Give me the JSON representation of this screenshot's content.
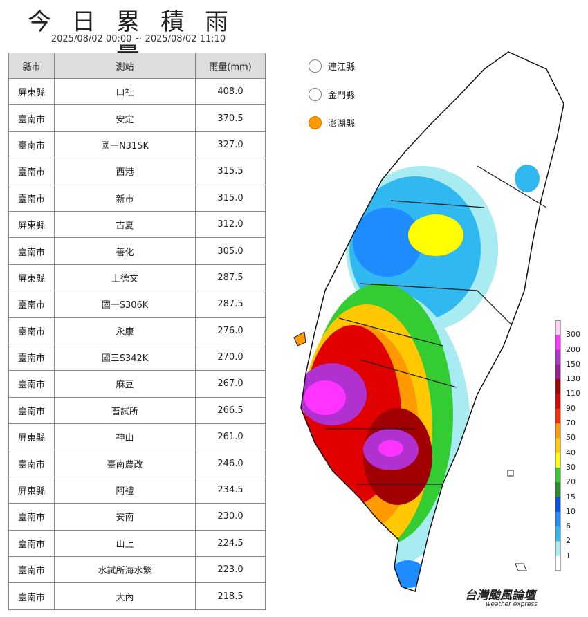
{
  "title": "今日累積雨量",
  "period": "2025/08/02 00:00 ~ 2025/08/02 11:10",
  "table": {
    "headers": [
      "縣市",
      "測站",
      "雨量(mm)"
    ],
    "rows": [
      [
        "屏東縣",
        "口社",
        "408.0"
      ],
      [
        "臺南市",
        "安定",
        "370.5"
      ],
      [
        "臺南市",
        "國一N315K",
        "327.0"
      ],
      [
        "臺南市",
        "西港",
        "315.5"
      ],
      [
        "臺南市",
        "新市",
        "315.0"
      ],
      [
        "屏東縣",
        "古夏",
        "312.0"
      ],
      [
        "臺南市",
        "善化",
        "305.0"
      ],
      [
        "屏東縣",
        "上德文",
        "287.5"
      ],
      [
        "臺南市",
        "國一S306K",
        "287.5"
      ],
      [
        "臺南市",
        "永康",
        "276.0"
      ],
      [
        "臺南市",
        "國三S342K",
        "270.0"
      ],
      [
        "臺南市",
        "麻豆",
        "267.0"
      ],
      [
        "臺南市",
        "畜試所",
        "266.5"
      ],
      [
        "屏東縣",
        "神山",
        "261.0"
      ],
      [
        "臺南市",
        "臺南農改",
        "246.0"
      ],
      [
        "屏東縣",
        "阿禮",
        "234.5"
      ],
      [
        "臺南市",
        "安南",
        "230.0"
      ],
      [
        "臺南市",
        "山上",
        "224.5"
      ],
      [
        "臺南市",
        "水試所海水繁",
        "223.0"
      ],
      [
        "臺南市",
        "大內",
        "218.5"
      ]
    ]
  },
  "islands": [
    {
      "name": "連江縣",
      "color": "#ffffff"
    },
    {
      "name": "金門縣",
      "color": "#ffffff"
    },
    {
      "name": "澎湖縣",
      "color": "#ff9900"
    }
  ],
  "legend": {
    "ticks": [
      "300",
      "200",
      "150",
      "130",
      "110",
      "90",
      "70",
      "50",
      "40",
      "30",
      "20",
      "15",
      "10",
      "6",
      "2",
      "1"
    ],
    "colors": [
      "#ffd0f6",
      "#ff33ff",
      "#b030d0",
      "#9a1a9a",
      "#a00000",
      "#e00000",
      "#ff2a00",
      "#ff9a00",
      "#ffc800",
      "#ffff00",
      "#33cc33",
      "#2a8a2a",
      "#0050f0",
      "#1e8cff",
      "#30b8f0",
      "#a8ecf2",
      "#ffffff"
    ]
  },
  "logo": {
    "name": "台灣颱風論壇",
    "tagline": "weather express"
  }
}
